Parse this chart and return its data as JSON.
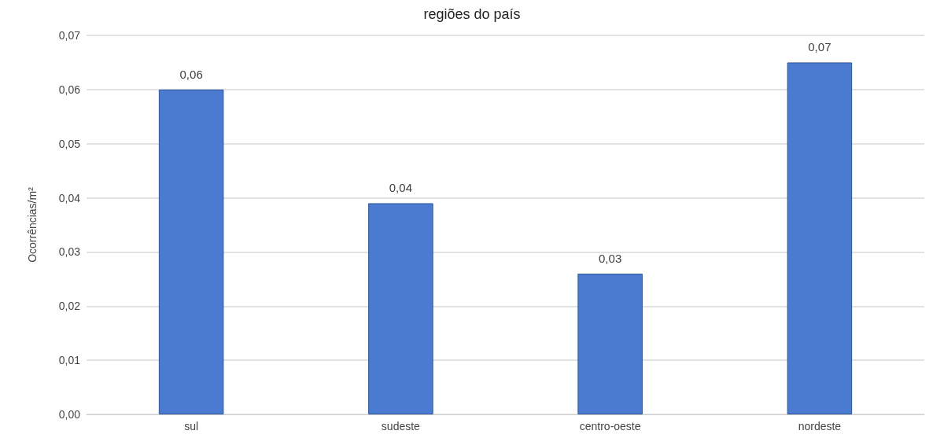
{
  "chart_data": {
    "type": "bar",
    "title": "regiões do país",
    "ylabel": "Ocorrências/m²",
    "categories": [
      "sul",
      "sudeste",
      "centro-oeste",
      "nordeste"
    ],
    "values": [
      0.06,
      0.039,
      0.026,
      0.065
    ],
    "value_labels": [
      "0,06",
      "0,04",
      "0,03",
      "0,07"
    ],
    "color": "#4a7bd0",
    "ylim": [
      0,
      0.07
    ],
    "yticks": [
      {
        "value": 0,
        "label": "0,00"
      },
      {
        "value": 0.01,
        "label": "0,01"
      },
      {
        "value": 0.02,
        "label": "0,02"
      },
      {
        "value": 0.03,
        "label": "0,03"
      },
      {
        "value": 0.04,
        "label": "0,04"
      },
      {
        "value": 0.05,
        "label": "0,05"
      },
      {
        "value": 0.06,
        "label": "0,06"
      },
      {
        "value": 0.07,
        "label": "0,07"
      }
    ],
    "grid": true
  }
}
